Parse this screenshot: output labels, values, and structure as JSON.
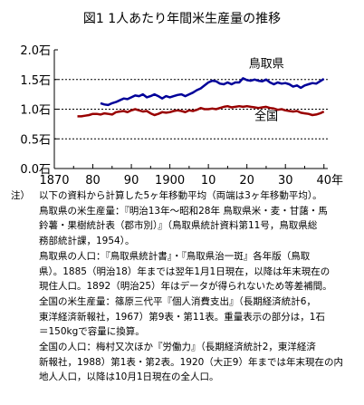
{
  "title": "図1 1人あたり年間米生産量の推移",
  "chart_data": {
    "type": "line",
    "y_unit": "石",
    "x_unit": "年",
    "ylim": [
      0,
      2.0
    ],
    "xlim": [
      1870,
      1941
    ],
    "y_ticks": [
      "2.0石",
      "1.5石",
      "1.0石",
      "0.5石",
      "0.0石"
    ],
    "y_tick_values": [
      2.0,
      1.5,
      1.0,
      0.5,
      0.0
    ],
    "x_tick_labels": [
      "1870",
      "80",
      "90",
      "1900",
      "10",
      "20",
      "30",
      "40"
    ],
    "x_tick_values": [
      1870,
      1880,
      1890,
      1900,
      1910,
      1920,
      1930,
      1940
    ],
    "gridlines_dashed_at": [
      1.5,
      1.0,
      0.5
    ],
    "series": [
      {
        "name": "鳥取県",
        "color": "#000099",
        "x": [
          1882,
          1883,
          1884,
          1885,
          1886,
          1887,
          1888,
          1889,
          1890,
          1891,
          1892,
          1893,
          1894,
          1895,
          1896,
          1897,
          1898,
          1899,
          1900,
          1901,
          1902,
          1903,
          1904,
          1905,
          1906,
          1907,
          1908,
          1909,
          1910,
          1911,
          1912,
          1913,
          1914,
          1915,
          1916,
          1917,
          1918,
          1919,
          1920,
          1921,
          1922,
          1923,
          1924,
          1925,
          1926,
          1927,
          1928,
          1929,
          1930,
          1931,
          1932,
          1933,
          1934,
          1935,
          1936,
          1937,
          1938,
          1939,
          1940
        ],
        "y": [
          1.1,
          1.08,
          1.07,
          1.1,
          1.12,
          1.15,
          1.18,
          1.17,
          1.2,
          1.23,
          1.22,
          1.25,
          1.2,
          1.22,
          1.25,
          1.22,
          1.18,
          1.22,
          1.2,
          1.22,
          1.24,
          1.25,
          1.22,
          1.25,
          1.28,
          1.32,
          1.35,
          1.4,
          1.45,
          1.48,
          1.47,
          1.43,
          1.42,
          1.45,
          1.42,
          1.45,
          1.45,
          1.52,
          1.49,
          1.48,
          1.5,
          1.48,
          1.47,
          1.5,
          1.45,
          1.42,
          1.45,
          1.43,
          1.44,
          1.42,
          1.38,
          1.4,
          1.36,
          1.4,
          1.42,
          1.44,
          1.43,
          1.47,
          1.51
        ]
      },
      {
        "name": "全国",
        "color": "#990000",
        "x": [
          1876,
          1877,
          1878,
          1879,
          1880,
          1881,
          1882,
          1883,
          1884,
          1885,
          1886,
          1887,
          1888,
          1889,
          1890,
          1891,
          1892,
          1893,
          1894,
          1895,
          1896,
          1897,
          1898,
          1899,
          1900,
          1901,
          1902,
          1903,
          1904,
          1905,
          1906,
          1907,
          1908,
          1909,
          1910,
          1911,
          1912,
          1913,
          1914,
          1915,
          1916,
          1917,
          1918,
          1919,
          1920,
          1921,
          1922,
          1923,
          1924,
          1925,
          1926,
          1927,
          1928,
          1929,
          1930,
          1931,
          1932,
          1933,
          1934,
          1935,
          1936,
          1937,
          1938,
          1939,
          1940
        ],
        "y": [
          0.88,
          0.88,
          0.89,
          0.9,
          0.92,
          0.92,
          0.91,
          0.93,
          0.92,
          0.91,
          0.95,
          0.96,
          0.97,
          0.95,
          0.98,
          1.0,
          0.98,
          0.96,
          0.97,
          0.93,
          0.9,
          0.92,
          0.95,
          0.94,
          0.95,
          0.97,
          0.98,
          0.97,
          0.95,
          0.98,
          0.97,
          0.99,
          1.02,
          1.0,
          1.0,
          1.01,
          1.0,
          1.02,
          1.04,
          1.05,
          1.03,
          1.04,
          1.05,
          1.04,
          1.05,
          1.04,
          1.03,
          1.02,
          1.03,
          1.04,
          1.02,
          1.01,
          0.99,
          1.0,
          0.98,
          0.97,
          0.96,
          0.97,
          0.94,
          0.93,
          0.92,
          0.9,
          0.91,
          0.93,
          0.96
        ]
      }
    ]
  },
  "notes": [
    {
      "lead": "注）",
      "text": "以下の資料から計算した5ヶ年移動平均（両端は3ヶ年移動平均）。"
    },
    {
      "text": "鳥取県の米生産量：『明治13年〜昭和28年 鳥取県米・麦・甘藷・馬"
    },
    {
      "text": "鈴薯・果樹統計表（郡市別）』（鳥取県統計資料第11号，鳥取県総"
    },
    {
      "text": "務部統計課，1954）。"
    },
    {
      "text": "鳥取県の人口：『鳥取県統計書』・『鳥取県治一斑』各年版（鳥取"
    },
    {
      "text": "県）。1885（明治18）年までは翌年1月1日現在，以降は年末現在の"
    },
    {
      "text": "現住人口。1892（明治25）年はデータが得られないため等差補間。"
    },
    {
      "text": "全国の米生産量：篠原三代平『個人消費支出』（長期経済統計6，"
    },
    {
      "text": "東洋経済新報社，1967）第9表・第11表。重量表示の部分は，1石"
    },
    {
      "text": "＝150kgで容量に換算。"
    },
    {
      "text": "全国の人口：梅村又次ほか『労働力』（長期経済統計2，東洋経済"
    },
    {
      "text": "新報社，1988）第1表・第2表。1920（大正9）年までは年末現在の内"
    },
    {
      "text": "地人人口，以降は10月1日現在の全人口。"
    }
  ]
}
